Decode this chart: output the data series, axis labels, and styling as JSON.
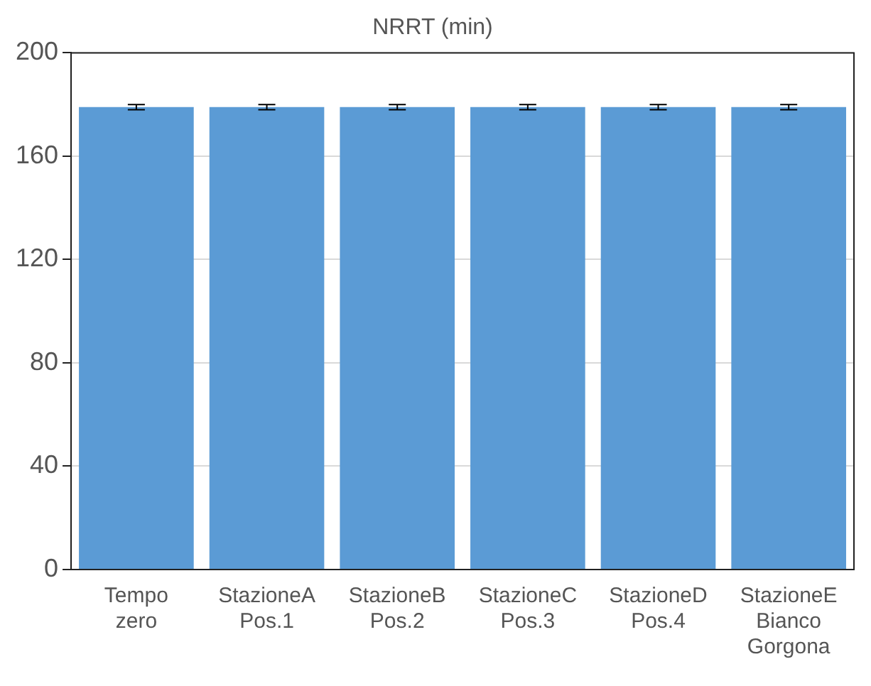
{
  "chart_data": {
    "type": "bar",
    "title": "NRRT (min)",
    "categories": [
      "Tempo zero",
      "StazioneA Pos.1",
      "StazioneB Pos.2",
      "StazioneC Pos.3",
      "StazioneD Pos.4",
      "StazioneE Bianco Gorgona"
    ],
    "values": [
      179,
      179,
      179,
      179,
      179,
      179
    ],
    "errors": [
      1,
      1,
      1,
      1,
      1,
      1
    ],
    "color": "#5b9bd5",
    "ylim": [
      0,
      200
    ],
    "yticks": [
      0,
      40,
      80,
      120,
      160,
      200
    ],
    "grid": "y"
  }
}
